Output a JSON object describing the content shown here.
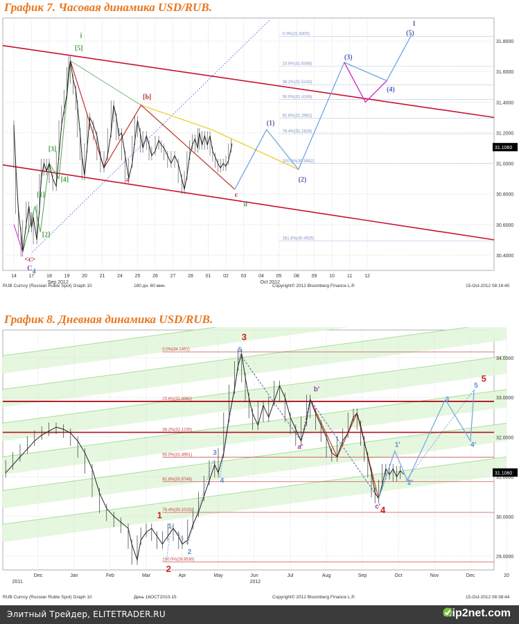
{
  "chart_data": [
    {
      "type": "line",
      "title": "График 7.   Часовая динамика USD/RUB.",
      "y_ticks": [
        "31.8000",
        "31.6000",
        "31.4000",
        "31.2000",
        "31.0000",
        "30.8000",
        "30.6000",
        "30.4000"
      ],
      "y_values": [
        31.8,
        31.6,
        31.4,
        31.2,
        31.0,
        30.8,
        30.6,
        30.4
      ],
      "ylim": [
        30.3,
        31.95
      ],
      "x_ticks": [
        "14",
        "17",
        "18",
        "19",
        "20",
        "21",
        "24",
        "25",
        "26",
        "27",
        "28",
        "01",
        "02",
        "03",
        "04",
        "05",
        "08",
        "09",
        "10",
        "11",
        "12"
      ],
      "x_month_labels": [
        {
          "text": "Sep 2012",
          "x": 2.5
        },
        {
          "text": "Oct 2012",
          "x": 14.5
        }
      ],
      "last_price": "31.1060",
      "last_price_value": 31.106,
      "fib_labels": [
        "0.0%(31.8300)",
        "23.6%(31.6348)",
        "38.2%(31.5143)",
        "50.0%(31.4169)",
        "61.8%(31.2962)",
        "76.4%(31.1926)",
        "100.0%(30.9992)",
        "161.8%(30.4925)"
      ],
      "footer_left": "RUB Curncy (Russian Ruble Spot) Graph 10",
      "footer_mid": "180 дн. 60 мин.",
      "footer_copy": "Copyright© 2012 Bloomberg Finance L.P.",
      "footer_date": "15-Oct-2012 08:16:40",
      "price_path": [
        [
          0,
          31.25
        ],
        [
          0.1,
          31.0
        ],
        [
          0.25,
          30.7
        ],
        [
          0.4,
          30.55
        ],
        [
          0.5,
          30.42
        ],
        [
          0.7,
          30.6
        ],
        [
          0.85,
          30.72
        ],
        [
          1.0,
          30.58
        ],
        [
          1.1,
          30.65
        ],
        [
          1.3,
          30.5
        ],
        [
          1.45,
          30.7
        ],
        [
          1.55,
          30.9
        ],
        [
          1.7,
          31.0
        ],
        [
          1.85,
          30.95
        ],
        [
          2.0,
          31.0
        ],
        [
          2.2,
          30.9
        ],
        [
          2.4,
          30.85
        ],
        [
          2.55,
          31.05
        ],
        [
          2.7,
          31.25
        ],
        [
          2.85,
          31.35
        ],
        [
          3.0,
          31.45
        ],
        [
          3.1,
          31.6
        ],
        [
          3.2,
          31.67
        ],
        [
          3.35,
          31.55
        ],
        [
          3.5,
          31.48
        ],
        [
          3.6,
          31.38
        ],
        [
          3.75,
          31.2
        ],
        [
          3.85,
          31.05
        ],
        [
          4.0,
          30.92
        ],
        [
          4.15,
          31.1
        ],
        [
          4.3,
          31.3
        ],
        [
          4.5,
          31.25
        ],
        [
          4.7,
          31.18
        ],
        [
          4.9,
          31.05
        ],
        [
          5.1,
          30.97
        ],
        [
          5.3,
          31.05
        ],
        [
          5.5,
          31.2
        ],
        [
          5.65,
          31.38
        ],
        [
          5.8,
          31.3
        ],
        [
          5.95,
          31.18
        ],
        [
          6.1,
          31.2
        ],
        [
          6.3,
          31.05
        ],
        [
          6.5,
          30.9
        ],
        [
          6.7,
          31.0
        ],
        [
          6.85,
          31.15
        ],
        [
          7.0,
          31.28
        ],
        [
          7.15,
          31.2
        ],
        [
          7.3,
          31.1
        ],
        [
          7.5,
          31.18
        ],
        [
          7.65,
          31.12
        ],
        [
          7.8,
          31.05
        ],
        [
          8.0,
          31.08
        ],
        [
          8.2,
          31.15
        ],
        [
          8.35,
          31.12
        ],
        [
          8.5,
          31.1
        ],
        [
          8.7,
          31.05
        ],
        [
          8.9,
          31.0
        ],
        [
          9.1,
          31.05
        ],
        [
          9.3,
          31.0
        ],
        [
          9.5,
          30.9
        ],
        [
          9.65,
          30.83
        ],
        [
          9.8,
          30.92
        ],
        [
          9.95,
          31.05
        ],
        [
          10.1,
          31.12
        ],
        [
          10.25,
          31.16
        ],
        [
          10.4,
          31.1
        ],
        [
          10.5,
          31.2
        ],
        [
          10.65,
          31.12
        ],
        [
          10.8,
          31.18
        ],
        [
          10.95,
          31.12
        ],
        [
          11.1,
          31.18
        ],
        [
          11.25,
          31.08
        ],
        [
          11.4,
          31.04
        ],
        [
          11.55,
          31.0
        ],
        [
          11.7,
          30.97
        ],
        [
          11.85,
          31.0
        ],
        [
          12.0,
          30.98
        ],
        [
          12.15,
          31.02
        ],
        [
          12.3,
          31.1
        ],
        [
          12.35,
          31.13
        ]
      ],
      "wave_labels": [
        {
          "text": "<c>",
          "x": 0.6,
          "y": 30.36,
          "color": "#c01040"
        },
        {
          "text": "C",
          "x": 0.75,
          "y": 30.3,
          "color": "#8a3fb8"
        },
        {
          "text": "4",
          "x": 1.05,
          "y": 30.28,
          "color": "#5b7fc7"
        },
        {
          "text": "[1]",
          "x": 1.3,
          "y": 30.78,
          "color": "#4aa34a"
        },
        {
          "text": "[2]",
          "x": 1.6,
          "y": 30.52,
          "color": "#4aa34a"
        },
        {
          "text": "[3]",
          "x": 1.95,
          "y": 31.08,
          "color": "#4aa34a"
        },
        {
          "text": "[4]",
          "x": 2.65,
          "y": 30.88,
          "color": "#4aa34a"
        },
        {
          "text": "[5]",
          "x": 3.45,
          "y": 31.74,
          "color": "#4aa34a"
        },
        {
          "text": "i",
          "x": 3.75,
          "y": 31.82,
          "color": "#4aa34a"
        },
        {
          "text": "a",
          "x": 6.35,
          "y": 30.88,
          "color": "#c03030"
        },
        {
          "text": "[b]",
          "x": 7.3,
          "y": 31.42,
          "color": "#c03030"
        },
        {
          "text": "c",
          "x": 12.5,
          "y": 30.78,
          "color": "#c03030"
        },
        {
          "text": "ii",
          "x": 13.0,
          "y": 30.72,
          "color": "#4aa34a"
        },
        {
          "text": "(1)",
          "x": 14.3,
          "y": 31.25,
          "color": "#5060b0"
        },
        {
          "text": "(2)",
          "x": 16.1,
          "y": 30.88,
          "color": "#5060b0"
        },
        {
          "text": "(3)",
          "x": 18.7,
          "y": 31.68,
          "color": "#5060b0"
        },
        {
          "text": "(4)",
          "x": 21.1,
          "y": 31.47,
          "color": "#5060b0"
        },
        {
          "text": "(5)",
          "x": 22.2,
          "y": 31.84,
          "color": "#5060b0"
        },
        {
          "text": "1",
          "x": 22.55,
          "y": 31.9,
          "color": "#5060b0"
        }
      ]
    },
    {
      "type": "line",
      "title": "График 8.   Дневная динамика USD/RUB.",
      "y_ticks": [
        "34.0000",
        "33.0000",
        "32.0000",
        "31.0000",
        "30.0000",
        "29.0000"
      ],
      "y_values": [
        34,
        33,
        32,
        31,
        30,
        29
      ],
      "ylim": [
        28.65,
        34.7
      ],
      "x_ticks": [
        "Dec",
        "Jan",
        "Feb",
        "Mar",
        "Apr",
        "May",
        "Jun",
        "Jul",
        "Aug",
        "Sep",
        "Oct",
        "Nov",
        "Dec",
        "20"
      ],
      "x_year_labels": [
        {
          "text": "2011",
          "x": 0.1
        },
        {
          "text": "2012",
          "x": 6.7
        }
      ],
      "last_price": "31.1060",
      "last_price_value": 31.106,
      "fib_labels": [
        "0.0%(34.1451)",
        "23.6%(32.8962)",
        "38.2%(32.1235)",
        "50.0%(31.4951)",
        "61.8%(30.8746)",
        "76.4%(30.1019)",
        "100.0%(28.8530)"
      ],
      "fib_values": [
        34.1451,
        32.8962,
        32.1235,
        31.4951,
        30.8746,
        30.1019,
        28.853
      ],
      "footer_left": "RUB Curncy (Russian Ruble Spot) Graph 10",
      "footer_mid": "День 16OCT2010-15",
      "footer_copy": "Copyright© 2012 Bloomberg Finance L.P.",
      "footer_date": "15-Oct-2012 08:38:44",
      "price_path": [
        [
          -0.9,
          31.1
        ],
        [
          -0.7,
          31.3
        ],
        [
          -0.5,
          31.5
        ],
        [
          -0.3,
          31.7
        ],
        [
          -0.1,
          31.9
        ],
        [
          0.1,
          32.05
        ],
        [
          0.3,
          32.15
        ],
        [
          0.5,
          32.25
        ],
        [
          0.7,
          32.2
        ],
        [
          0.9,
          32.1
        ],
        [
          1.1,
          31.9
        ],
        [
          1.3,
          31.6
        ],
        [
          1.5,
          31.2
        ],
        [
          1.7,
          30.6
        ],
        [
          1.9,
          30.2
        ],
        [
          2.1,
          30.0
        ],
        [
          2.3,
          29.85
        ],
        [
          2.5,
          29.7
        ],
        [
          2.6,
          29.3
        ],
        [
          2.75,
          28.9
        ],
        [
          2.85,
          29.4
        ],
        [
          3.0,
          29.6
        ],
        [
          3.15,
          29.7
        ],
        [
          3.3,
          29.5
        ],
        [
          3.45,
          29.3
        ],
        [
          3.6,
          29.5
        ],
        [
          3.75,
          29.7
        ],
        [
          3.9,
          29.5
        ],
        [
          4.0,
          29.3
        ],
        [
          4.15,
          29.4
        ],
        [
          4.3,
          29.8
        ],
        [
          4.45,
          30.1
        ],
        [
          4.6,
          30.5
        ],
        [
          4.75,
          30.9
        ],
        [
          4.9,
          31.3
        ],
        [
          5.0,
          31.1
        ],
        [
          5.15,
          31.6
        ],
        [
          5.3,
          32.5
        ],
        [
          5.45,
          33.2
        ],
        [
          5.55,
          33.8
        ],
        [
          5.65,
          34.1
        ],
        [
          5.75,
          33.5
        ],
        [
          5.85,
          33.0
        ],
        [
          5.95,
          32.6
        ],
        [
          6.1,
          32.3
        ],
        [
          6.25,
          32.8
        ],
        [
          6.4,
          32.5
        ],
        [
          6.55,
          32.9
        ],
        [
          6.7,
          33.3
        ],
        [
          6.85,
          33.0
        ],
        [
          7.0,
          32.5
        ],
        [
          7.15,
          32.2
        ],
        [
          7.3,
          31.9
        ],
        [
          7.45,
          32.4
        ],
        [
          7.55,
          32.95
        ],
        [
          7.7,
          32.6
        ],
        [
          7.85,
          32.3
        ],
        [
          8.0,
          32.0
        ],
        [
          8.15,
          31.6
        ],
        [
          8.3,
          31.5
        ],
        [
          8.45,
          31.9
        ],
        [
          8.6,
          32.1
        ],
        [
          8.75,
          32.5
        ],
        [
          8.85,
          32.6
        ],
        [
          8.95,
          32.3
        ],
        [
          9.05,
          31.9
        ],
        [
          9.15,
          31.5
        ],
        [
          9.25,
          31.1
        ],
        [
          9.35,
          30.6
        ],
        [
          9.45,
          30.45
        ],
        [
          9.55,
          30.8
        ],
        [
          9.65,
          31.2
        ],
        [
          9.75,
          31.05
        ],
        [
          9.85,
          31.2
        ],
        [
          9.95,
          31.0
        ],
        [
          10.05,
          31.15
        ],
        [
          10.15,
          31.06
        ]
      ],
      "wave_labels": [
        {
          "text": "1",
          "x": 3.3,
          "y": 29.95,
          "color": "#cc2020"
        },
        {
          "text": "2",
          "x": 3.55,
          "y": 28.6,
          "color": "#cc2020"
        },
        {
          "text": "1",
          "x": 3.6,
          "y": 29.7,
          "color": "#5b8fd0"
        },
        {
          "text": "2",
          "x": 4.15,
          "y": 29.05,
          "color": "#5b8fd0"
        },
        {
          "text": "3",
          "x": 4.85,
          "y": 31.55,
          "color": "#5b8fd0"
        },
        {
          "text": "4",
          "x": 5.05,
          "y": 30.85,
          "color": "#5b8fd0"
        },
        {
          "text": "5",
          "x": 5.55,
          "y": 34.15,
          "color": "#5b8fd0"
        },
        {
          "text": "3",
          "x": 5.65,
          "y": 34.45,
          "color": "#cc2020"
        },
        {
          "text": "a'",
          "x": 7.2,
          "y": 31.7,
          "color": "#9a3fa8"
        },
        {
          "text": "b'",
          "x": 7.65,
          "y": 33.15,
          "color": "#9a3fa8"
        },
        {
          "text": "c'",
          "x": 9.35,
          "y": 30.2,
          "color": "#9a3fa8"
        },
        {
          "text": "4",
          "x": 9.5,
          "y": 30.08,
          "color": "#cc2020"
        },
        {
          "text": "1'",
          "x": 9.9,
          "y": 31.75,
          "color": "#5b8fd0"
        },
        {
          "text": "2'",
          "x": 10.25,
          "y": 30.8,
          "color": "#5b8fd0"
        },
        {
          "text": "3",
          "x": 11.3,
          "y": 32.9,
          "color": "#5b8fd0"
        },
        {
          "text": "4'",
          "x": 12.0,
          "y": 31.75,
          "color": "#5b8fd0"
        },
        {
          "text": "5",
          "x": 12.1,
          "y": 33.25,
          "color": "#5b8fd0"
        },
        {
          "text": "5",
          "x": 12.3,
          "y": 33.4,
          "color": "#cc2020"
        }
      ]
    }
  ],
  "footer": {
    "site_text": "Элитный Трейдер, ELITETRADER.RU",
    "logo_text": "clip2net.com"
  },
  "colors": {
    "title": "#e8771f",
    "channel": "#c8102e",
    "price": "#222222",
    "projection": "#6fa4e0",
    "magenta": "#d020c0",
    "fib": "#d05050",
    "green_band": "#bfe8b0"
  }
}
